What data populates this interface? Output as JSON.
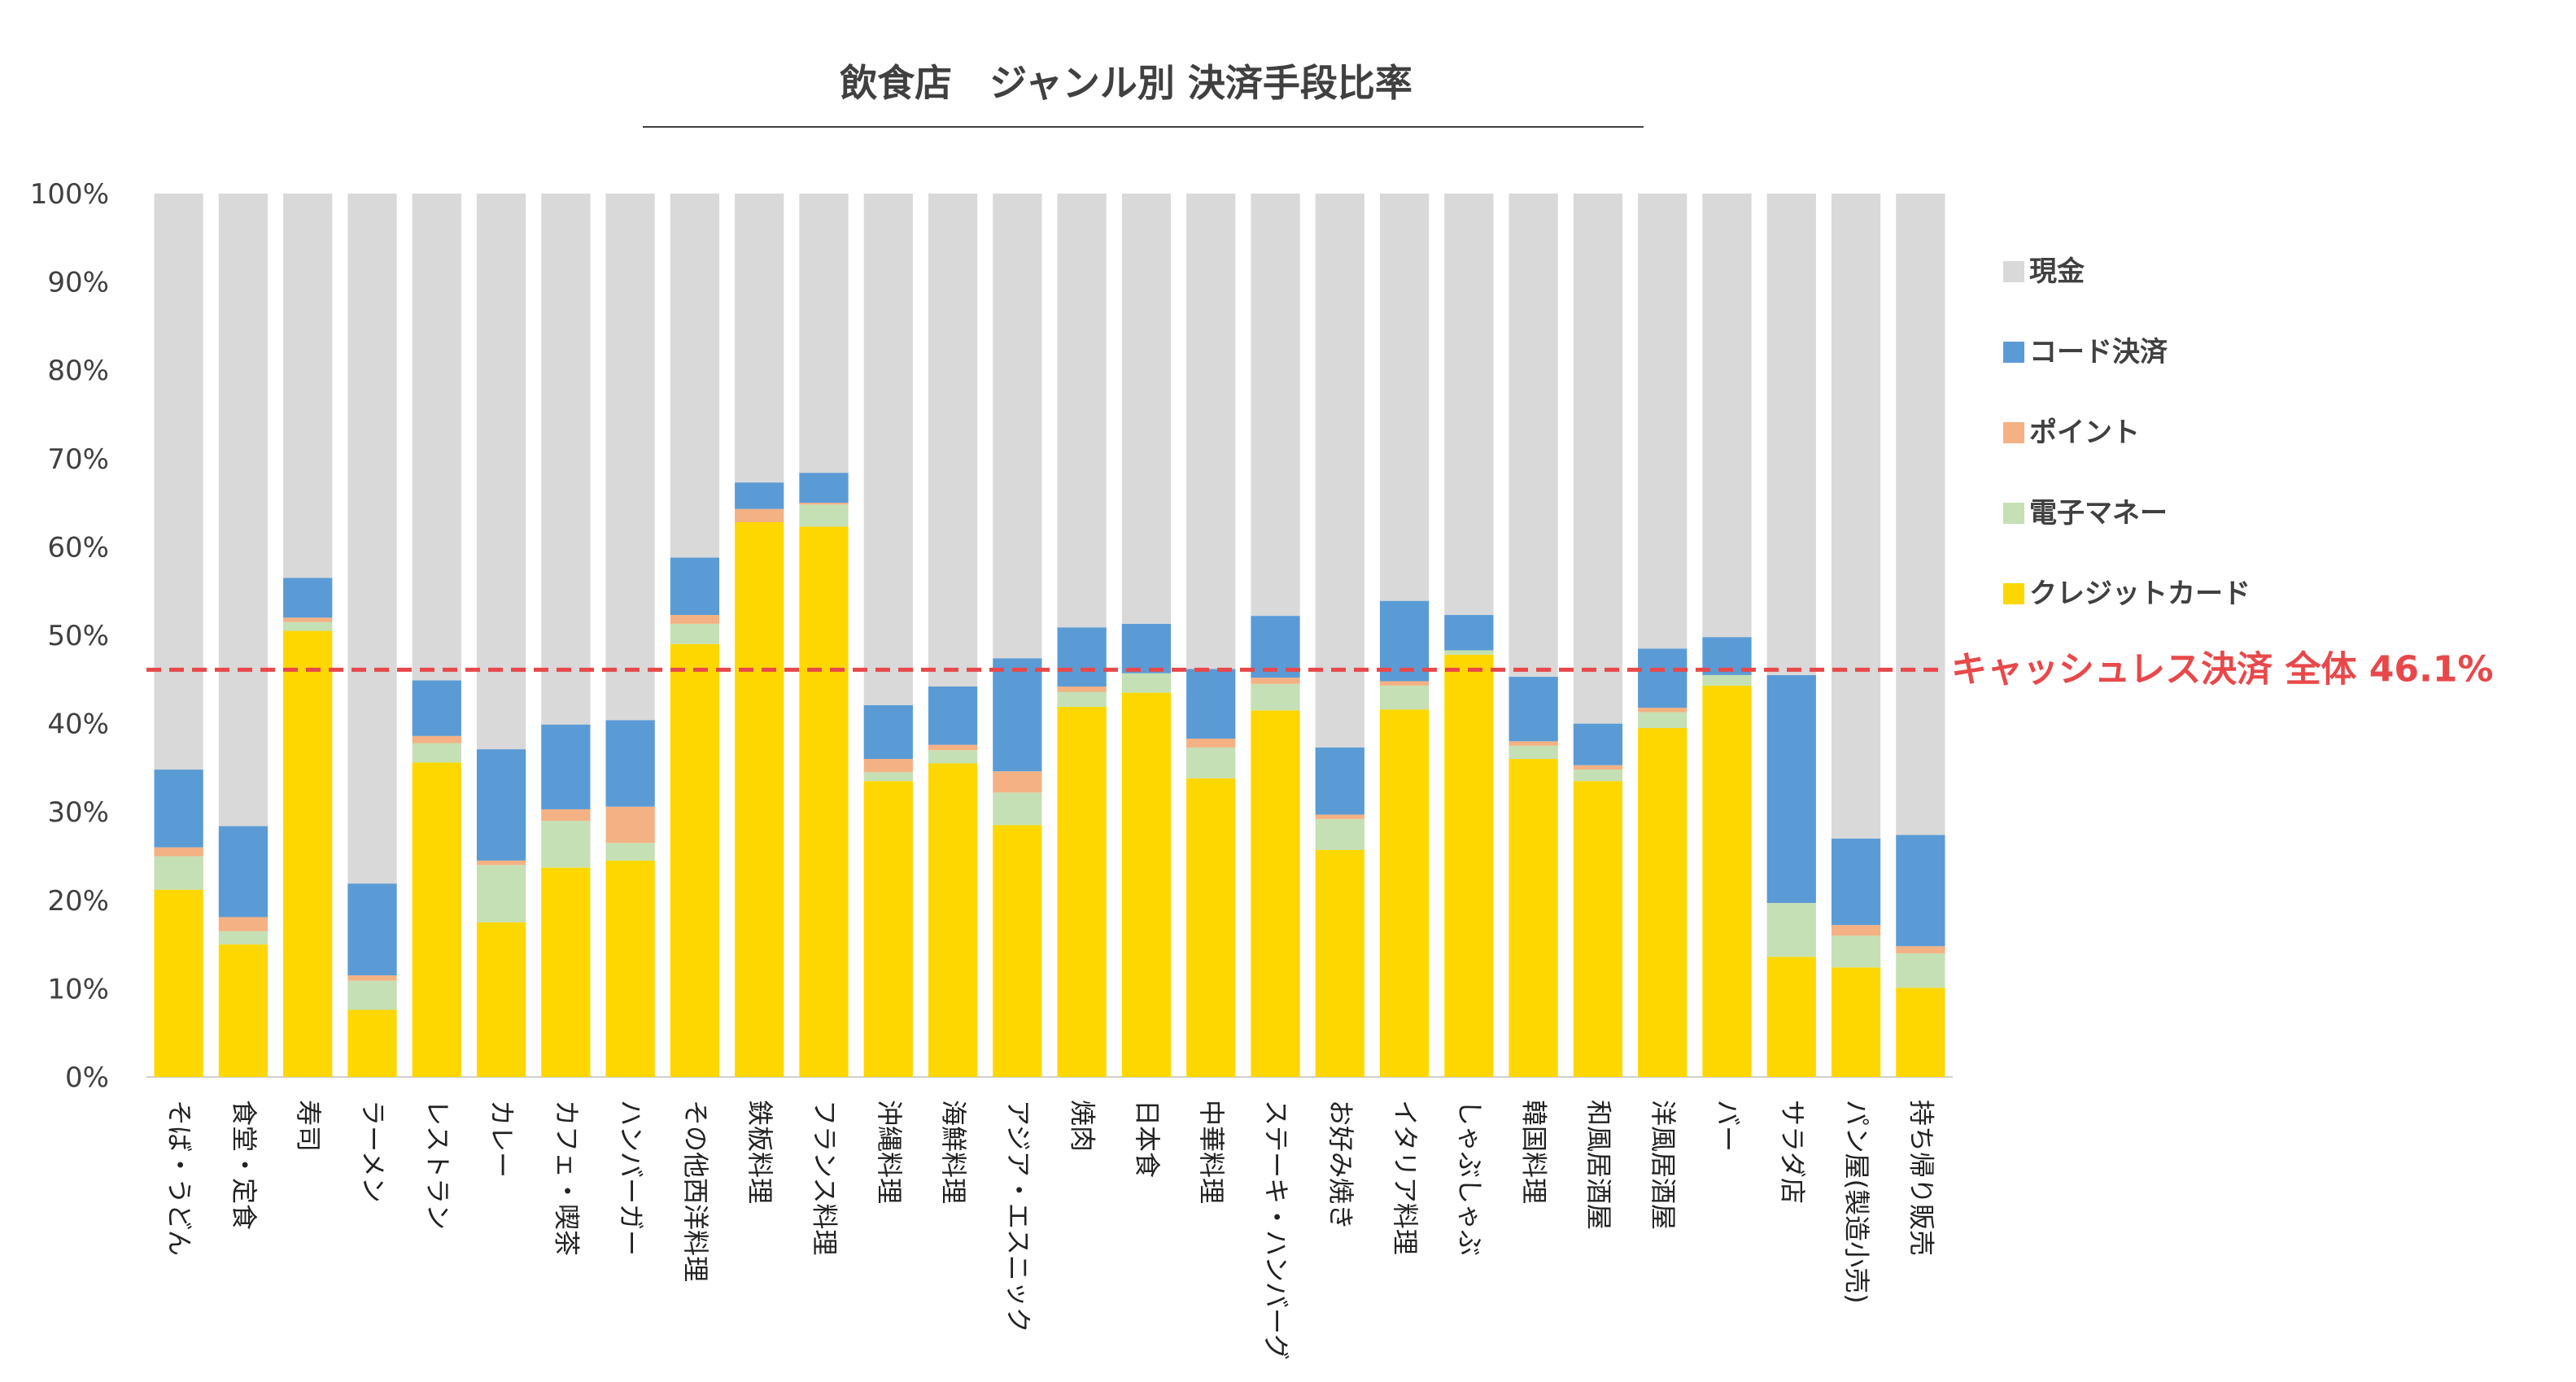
{
  "chart_data": {
    "type": "bar",
    "stacked": true,
    "title": "飲食店　ジャンル別 決済手段比率",
    "xlabel": "",
    "ylabel": "",
    "ylim": [
      0,
      100
    ],
    "yticks": [
      0,
      10,
      20,
      30,
      40,
      50,
      60,
      70,
      80,
      90,
      100
    ],
    "ytick_suffix": "%",
    "grid": false,
    "legend_position": "right",
    "categories": [
      "そば・うどん",
      "食堂・定食",
      "寿司",
      "ラーメン",
      "レストラン",
      "カレー",
      "カフェ・喫茶",
      "ハンバーガー",
      "その他西洋料理",
      "鉄板料理",
      "フランス料理",
      "沖縄料理",
      "海鮮料理",
      "アジア・エスニック",
      "焼肉",
      "日本食",
      "中華料理",
      "ステーキ・ハンバーグ",
      "お好み焼き",
      "イタリア料理",
      "しゃぶしゃぶ",
      "韓国料理",
      "和風居酒屋",
      "洋風居酒屋",
      "バー",
      "サラダ店",
      "パン屋(製造小売)",
      "持ち帰り販売"
    ],
    "series": [
      {
        "name": "クレジットカード",
        "color": "#FFD700",
        "values": [
          21.2,
          15.0,
          50.5,
          7.6,
          35.6,
          17.5,
          23.7,
          24.5,
          49.0,
          62.8,
          62.3,
          33.5,
          35.5,
          28.5,
          41.9,
          43.5,
          33.8,
          41.5,
          25.7,
          41.6,
          47.8,
          36.0,
          33.5,
          39.5,
          44.3,
          13.6,
          12.4,
          10.1
        ]
      },
      {
        "name": "電子マネー",
        "color": "#C5E0B4",
        "values": [
          3.8,
          1.5,
          1.0,
          3.3,
          2.2,
          6.5,
          5.3,
          2.0,
          2.3,
          0.0,
          2.5,
          1.0,
          1.5,
          3.7,
          1.7,
          2.2,
          3.5,
          3.0,
          3.5,
          2.7,
          0.5,
          1.5,
          1.3,
          1.8,
          1.2,
          6.1,
          3.6,
          3.9
        ]
      },
      {
        "name": "ポイント",
        "color": "#F4B183",
        "values": [
          1.0,
          1.6,
          0.5,
          0.6,
          0.8,
          0.5,
          1.3,
          4.1,
          1.0,
          1.5,
          0.2,
          1.5,
          0.6,
          2.4,
          0.6,
          0.0,
          1.0,
          0.7,
          0.5,
          0.5,
          0.0,
          0.5,
          0.5,
          0.5,
          0.0,
          0.0,
          1.2,
          0.8
        ]
      },
      {
        "name": "コード決済",
        "color": "#5B9BD5",
        "values": [
          8.8,
          10.3,
          4.5,
          10.4,
          6.3,
          12.6,
          9.6,
          9.8,
          6.5,
          3.0,
          3.4,
          6.1,
          6.6,
          12.8,
          6.7,
          5.6,
          7.9,
          7.0,
          7.6,
          9.1,
          4.0,
          7.3,
          4.7,
          6.7,
          4.3,
          25.8,
          9.8,
          12.6
        ]
      },
      {
        "name": "現金",
        "color": "#D9D9D9",
        "values": [
          65.2,
          71.6,
          43.5,
          78.1,
          55.1,
          62.9,
          60.1,
          59.6,
          41.2,
          32.7,
          31.6,
          57.9,
          55.8,
          52.6,
          49.1,
          48.7,
          53.8,
          47.8,
          62.7,
          46.1,
          47.7,
          54.7,
          60.0,
          51.5,
          50.2,
          54.5,
          73.0,
          72.6
        ]
      }
    ],
    "legend_order": [
      "現金",
      "コード決済",
      "ポイント",
      "電子マネー",
      "クレジットカード"
    ],
    "reference_line": {
      "value": 46.1,
      "label": "キャッシュレス決済 全体 46.1%",
      "color": "#E8484A"
    }
  }
}
